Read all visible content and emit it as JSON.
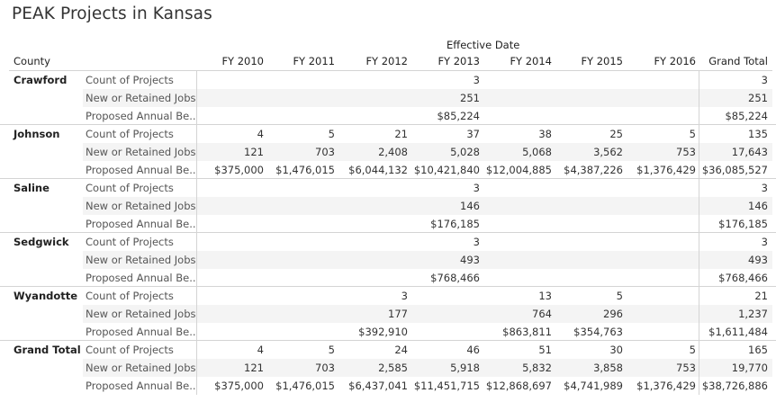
{
  "title": "PEAK Projects in Kansas",
  "column_group": "Effective Date",
  "row_header": "County",
  "columns": [
    "FY 2010",
    "FY 2011",
    "FY 2012",
    "FY 2013",
    "FY 2014",
    "FY 2015",
    "FY 2016",
    "Grand Total"
  ],
  "groups": [
    {
      "county": "Crawford",
      "rows": [
        {
          "measure": "Count of Projects",
          "values": [
            "",
            "",
            "",
            "3",
            "",
            "",
            "",
            "3"
          ]
        },
        {
          "measure": "New or Retained Jobs",
          "values": [
            "",
            "",
            "",
            "251",
            "",
            "",
            "",
            "251"
          ]
        },
        {
          "measure": "Proposed Annual Be..",
          "values": [
            "",
            "",
            "",
            "$85,224",
            "",
            "",
            "",
            "$85,224"
          ]
        }
      ]
    },
    {
      "county": "Johnson",
      "rows": [
        {
          "measure": "Count of Projects",
          "values": [
            "4",
            "5",
            "21",
            "37",
            "38",
            "25",
            "5",
            "135"
          ]
        },
        {
          "measure": "New or Retained Jobs",
          "values": [
            "121",
            "703",
            "2,408",
            "5,028",
            "5,068",
            "3,562",
            "753",
            "17,643"
          ]
        },
        {
          "measure": "Proposed Annual Be..",
          "values": [
            "$375,000",
            "$1,476,015",
            "$6,044,132",
            "$10,421,840",
            "$12,004,885",
            "$4,387,226",
            "$1,376,429",
            "$36,085,527"
          ]
        }
      ]
    },
    {
      "county": "Saline",
      "rows": [
        {
          "measure": "Count of Projects",
          "values": [
            "",
            "",
            "",
            "3",
            "",
            "",
            "",
            "3"
          ]
        },
        {
          "measure": "New or Retained Jobs",
          "values": [
            "",
            "",
            "",
            "146",
            "",
            "",
            "",
            "146"
          ]
        },
        {
          "measure": "Proposed Annual Be..",
          "values": [
            "",
            "",
            "",
            "$176,185",
            "",
            "",
            "",
            "$176,185"
          ]
        }
      ]
    },
    {
      "county": "Sedgwick",
      "rows": [
        {
          "measure": "Count of Projects",
          "values": [
            "",
            "",
            "",
            "3",
            "",
            "",
            "",
            "3"
          ]
        },
        {
          "measure": "New or Retained Jobs",
          "values": [
            "",
            "",
            "",
            "493",
            "",
            "",
            "",
            "493"
          ]
        },
        {
          "measure": "Proposed Annual Be..",
          "values": [
            "",
            "",
            "",
            "$768,466",
            "",
            "",
            "",
            "$768,466"
          ]
        }
      ]
    },
    {
      "county": "Wyandotte",
      "rows": [
        {
          "measure": "Count of Projects",
          "values": [
            "",
            "",
            "3",
            "",
            "13",
            "5",
            "",
            "21"
          ]
        },
        {
          "measure": "New or Retained Jobs",
          "values": [
            "",
            "",
            "177",
            "",
            "764",
            "296",
            "",
            "1,237"
          ]
        },
        {
          "measure": "Proposed Annual Be..",
          "values": [
            "",
            "",
            "$392,910",
            "",
            "$863,811",
            "$354,763",
            "",
            "$1,611,484"
          ]
        }
      ]
    },
    {
      "county": "Grand Total",
      "rows": [
        {
          "measure": "Count of Projects",
          "values": [
            "4",
            "5",
            "24",
            "46",
            "51",
            "30",
            "5",
            "165"
          ]
        },
        {
          "measure": "New or Retained Jobs",
          "values": [
            "121",
            "703",
            "2,585",
            "5,918",
            "5,832",
            "3,858",
            "753",
            "19,770"
          ]
        },
        {
          "measure": "Proposed Annual Be..",
          "values": [
            "$375,000",
            "$1,476,015",
            "$6,437,041",
            "$11,451,715",
            "$12,868,697",
            "$4,741,989",
            "$1,376,429",
            "$38,726,886"
          ]
        }
      ]
    }
  ]
}
